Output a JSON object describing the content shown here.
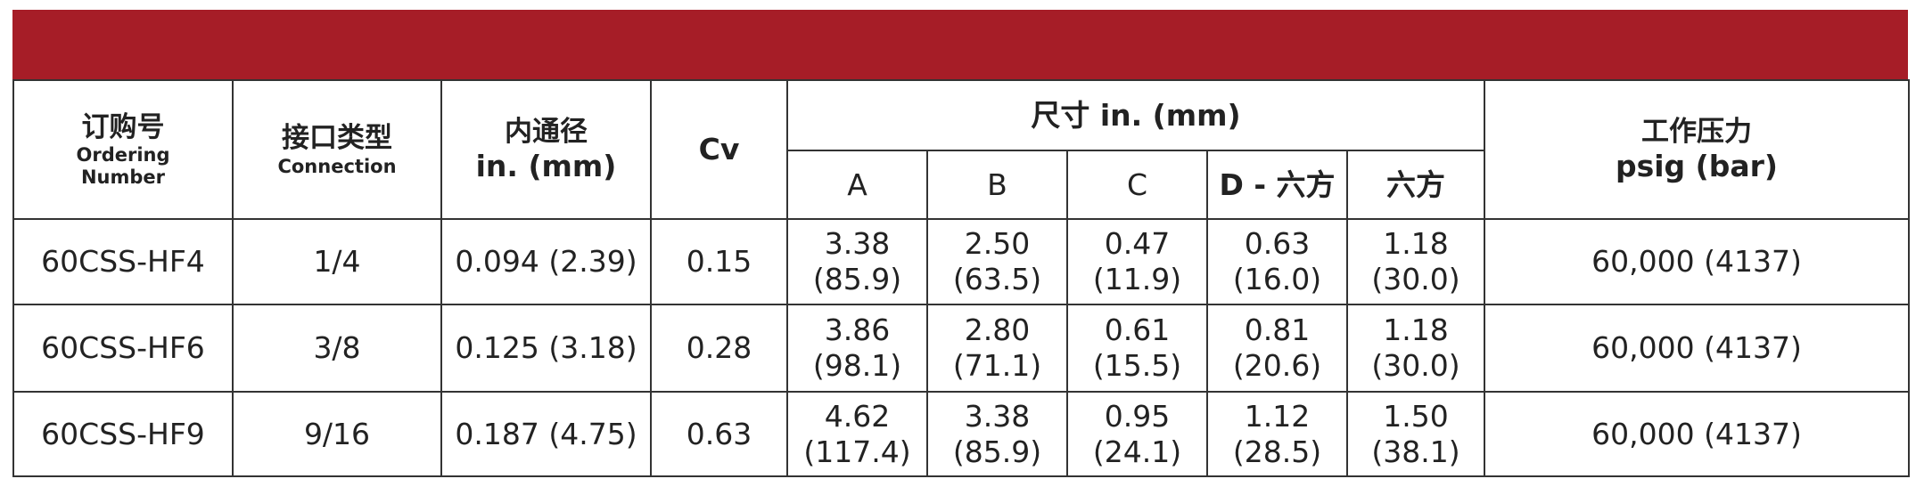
{
  "header": {
    "ordering_number": {
      "zh": "订购号",
      "en": "Ordering Number"
    },
    "connection": {
      "zh": "接口类型",
      "en": "Connection"
    },
    "bore": {
      "zh": "内通径",
      "en": "in. (mm)"
    },
    "cv": "Cv",
    "dimensions": {
      "title": "尺寸 in. (mm)",
      "columns": [
        "A",
        "B",
        "C",
        "D - 六方",
        "六方"
      ]
    },
    "pressure": {
      "zh": "工作压力",
      "en": "psig (bar)"
    }
  },
  "rows": [
    [
      "60CSS-HF4",
      "1/4",
      "0.094 (2.39)",
      "0.15",
      [
        "3.38",
        "(85.9)"
      ],
      [
        "2.50",
        "(63.5)"
      ],
      [
        "0.47",
        "(11.9)"
      ],
      [
        "0.63",
        "(16.0)"
      ],
      [
        "1.18",
        "(30.0)"
      ],
      "60,000 (4137)"
    ],
    [
      "60CSS-HF6",
      "3/8",
      "0.125 (3.18)",
      "0.28",
      [
        "3.86",
        "(98.1)"
      ],
      [
        "2.80",
        "(71.1)"
      ],
      [
        "0.61",
        "(15.5)"
      ],
      [
        "0.81",
        "(20.6)"
      ],
      [
        "1.18",
        "(30.0)"
      ],
      "60,000 (4137)"
    ],
    [
      "60CSS-HF9",
      "9/16",
      "0.187 (4.75)",
      "0.63",
      [
        "4.62",
        "(117.4)"
      ],
      [
        "3.38",
        "(85.9)"
      ],
      [
        "0.95",
        "(24.1)"
      ],
      [
        "1.12",
        "(28.5)"
      ],
      [
        "1.50",
        "(38.1)"
      ],
      "60,000 (4137)"
    ]
  ]
}
